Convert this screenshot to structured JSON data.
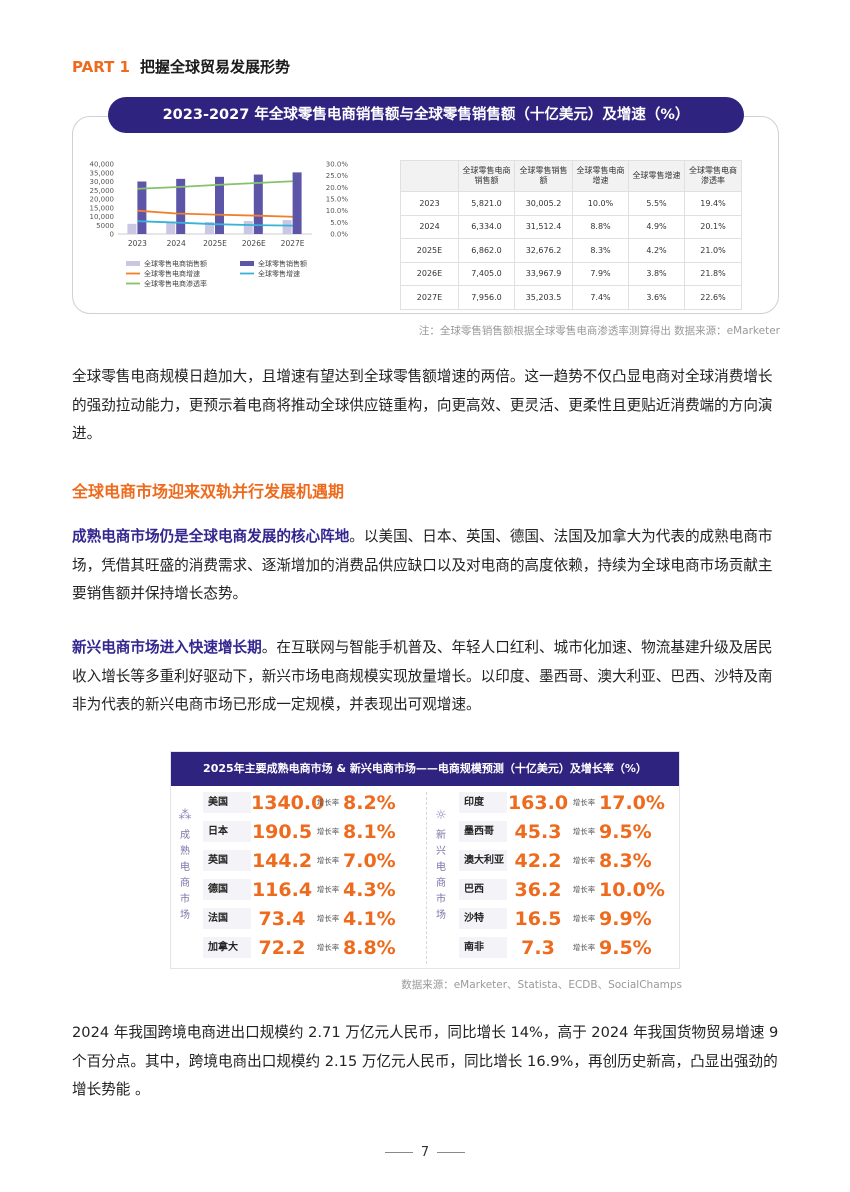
{
  "part": {
    "number": "PART 1",
    "title": "把握全球贸易发展形势"
  },
  "figure1": {
    "title": "2023-2027 年全球零售电商销售额与全球零售销售额（十亿美元）及增速（%）",
    "note": "注：全球零售销售额根据全球零售电商渗透率测算得出  数据来源：eMarketer",
    "table": {
      "headers": [
        "",
        "全球零售电商销售额",
        "全球零售销售额",
        "全球零售电商增速",
        "全球零售增速",
        "全球零售电商渗透率"
      ],
      "rows": [
        [
          "2023",
          "5,821.0",
          "30,005.2",
          "10.0%",
          "5.5%",
          "19.4%"
        ],
        [
          "2024",
          "6,334.0",
          "31,512.4",
          "8.8%",
          "4.9%",
          "20.1%"
        ],
        [
          "2025E",
          "6,862.0",
          "32,676.2",
          "8.3%",
          "4.2%",
          "21.0%"
        ],
        [
          "2026E",
          "7,405.0",
          "33,967.9",
          "7.9%",
          "3.8%",
          "21.8%"
        ],
        [
          "2027E",
          "7,956.0",
          "35,203.5",
          "7.4%",
          "3.6%",
          "22.6%"
        ]
      ]
    }
  },
  "chart_data": {
    "type": "bar",
    "categories": [
      "2023",
      "2024",
      "2025E",
      "2026E",
      "2027E"
    ],
    "series": [
      {
        "name": "全球零售电商销售额",
        "kind": "bar",
        "axis": "left",
        "color": "#c9c7e3",
        "values": [
          5821.0,
          6334.0,
          6862.0,
          7405.0,
          7956.0
        ]
      },
      {
        "name": "全球零售销售额",
        "kind": "bar",
        "axis": "left",
        "color": "#5d55a8",
        "values": [
          30005.2,
          31512.4,
          32676.2,
          33967.9,
          35203.5
        ]
      },
      {
        "name": "全球零售电商增速",
        "kind": "line",
        "axis": "right",
        "color": "#f07f2b",
        "values": [
          10.0,
          8.8,
          8.3,
          7.9,
          7.4
        ]
      },
      {
        "name": "全球零售增速",
        "kind": "line",
        "axis": "right",
        "color": "#36b3d6",
        "values": [
          5.5,
          4.9,
          4.2,
          3.8,
          3.6
        ]
      },
      {
        "name": "全球零售电商渗透率",
        "kind": "line",
        "axis": "right",
        "color": "#86c26b",
        "values": [
          19.4,
          20.1,
          21.0,
          21.8,
          22.6
        ]
      }
    ],
    "y_left": {
      "range": [
        0,
        40000
      ],
      "ticks": [
        "0",
        "5000",
        "10,000",
        "15,000",
        "20,000",
        "25,000",
        "30,000",
        "35,000",
        "40,000"
      ]
    },
    "y_right": {
      "range": [
        0,
        30
      ],
      "ticks": [
        "0.0%",
        "5.0%",
        "10.0%",
        "15.0%",
        "20.0%",
        "25.0%",
        "30.0%"
      ]
    },
    "legend_placement": "bottom",
    "grid": false
  },
  "paragraph1": "全球零售电商规模日趋加大，且增速有望达到全球零售额增速的两倍。这一趋势不仅凸显电商对全球消费增长的强劲拉动能力，更预示着电商将推动全球供应链重构，向更高效、更灵活、更柔性且更贴近消费端的方向演进。",
  "section_title": "全球电商市场迎来双轨并行发展机遇期",
  "paragraph2": {
    "lead": "成熟电商市场仍是全球电商发展的核心阵地",
    "rest": "。以美国、日本、英国、德国、法国及加拿大为代表的成熟电商市场，凭借其旺盛的消费需求、逐渐增加的消费品供应缺口以及对电商的高度依赖，持续为全球电商市场贡献主要销售额并保持增长态势。"
  },
  "paragraph3": {
    "lead": "新兴电商市场进入快速增长期",
    "rest": "。在互联网与智能手机普及、年轻人口红利、城市化加速、物流基建升级及居民收入增长等多重利好驱动下，新兴市场电商规模实现放量增长。以印度、墨西哥、澳大利亚、巴西、沙特及南非为代表的新兴电商市场已形成一定规模，并表现出可观增速。"
  },
  "figure2": {
    "title": "2025年主要成熟电商市场 & 新兴电商市场——电商规模预测（十亿美元）及增长率（%）",
    "rate_label": "增长率",
    "mature_label": [
      "成",
      "熟",
      "电",
      "商",
      "市",
      "场"
    ],
    "emerging_label": [
      "新",
      "兴",
      "电",
      "商",
      "市",
      "场"
    ],
    "mature": [
      {
        "name": "美国",
        "value": "1340.0",
        "rate": "8.2%"
      },
      {
        "name": "日本",
        "value": "190.5",
        "rate": "8.1%"
      },
      {
        "name": "英国",
        "value": "144.2",
        "rate": "7.0%"
      },
      {
        "name": "德国",
        "value": "116.4",
        "rate": "4.3%"
      },
      {
        "name": "法国",
        "value": "73.4",
        "rate": "4.1%"
      },
      {
        "name": "加拿大",
        "value": "72.2",
        "rate": "8.8%"
      }
    ],
    "emerging": [
      {
        "name": "印度",
        "value": "163.0",
        "rate": "17.0%"
      },
      {
        "name": "墨西哥",
        "value": "45.3",
        "rate": "9.5%"
      },
      {
        "name": "澳大利亚",
        "value": "42.2",
        "rate": "8.3%"
      },
      {
        "name": "巴西",
        "value": "36.2",
        "rate": "10.0%"
      },
      {
        "name": "沙特",
        "value": "16.5",
        "rate": "9.9%"
      },
      {
        "name": "南非",
        "value": "7.3",
        "rate": "9.5%"
      }
    ],
    "source": "数据来源：eMarketer、Statista、ECDB、SocialChamps"
  },
  "paragraph4": "2024 年我国跨境电商进出口规模约 2.71 万亿元人民币，同比增长 14%，高于 2024 年我国货物贸易增速 9 个百分点。其中，跨境电商出口规模约 2.15 万亿元人民币，同比增长 16.9%，再创历史新高，凸显出强劲的增长势能 。",
  "page_number": "7"
}
